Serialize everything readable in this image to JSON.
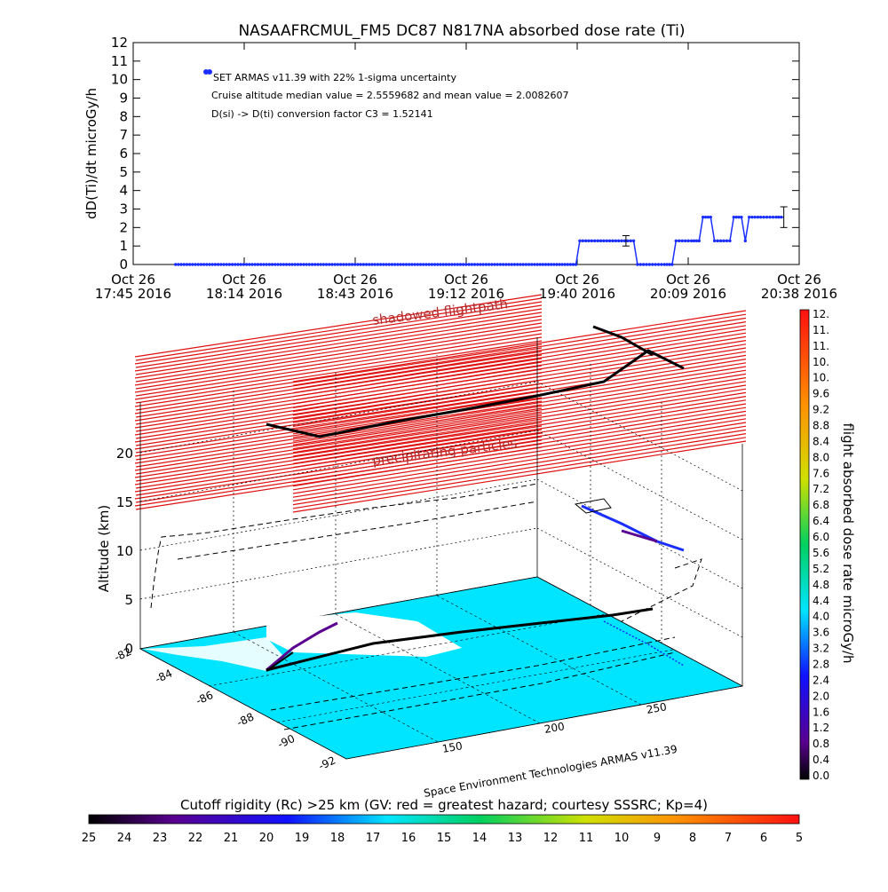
{
  "colors": {
    "axis": "#000000",
    "series": "#1a2fff",
    "net": "#e01010",
    "ocean": "#00e5ff",
    "track": "#000000"
  },
  "top_chart": {
    "title": "NASAAFRCMUL_FM5 DC87 N817NA absorbed dose rate (Ti)",
    "ylabel": "dD(Ti)/dt microGy/h",
    "legend_series": "SET ARMAS v11.39 with 22% 1-sigma uncertainty",
    "note1": "Cruise altitude median value = 2.5559682 and mean value = 2.0082607",
    "note2": "D(si) -> D(ti) conversion factor C3 = 1.52141",
    "x_ticks": [
      {
        "d": "Oct 26",
        "t": "17:45 2016"
      },
      {
        "d": "Oct 26",
        "t": "18:14 2016"
      },
      {
        "d": "Oct 26",
        "t": "18:43 2016"
      },
      {
        "d": "Oct 26",
        "t": "19:12 2016"
      },
      {
        "d": "Oct 26",
        "t": "19:40 2016"
      },
      {
        "d": "Oct 26",
        "t": "20:09 2016"
      },
      {
        "d": "Oct 26",
        "t": "20:38 2016"
      }
    ],
    "y_ticks": [
      "0",
      "1",
      "2",
      "3",
      "4",
      "5",
      "6",
      "7",
      "8",
      "9",
      "10",
      "11",
      "12"
    ]
  },
  "chart_data": [
    {
      "type": "line",
      "title": "NASAAFRCMUL_FM5 DC87 N817NA absorbed dose rate (Ti)",
      "xlabel": "",
      "ylabel": "dD(Ti)/dt microGy/h",
      "xlim": [
        "Oct 26 17:45 2016",
        "Oct 26 20:38 2016"
      ],
      "ylim": [
        0,
        12
      ],
      "series": [
        {
          "name": "SET ARMAS v11.39 with 22% 1-sigma uncertainty",
          "points": [
            [
              "17:56",
              0
            ],
            [
              "18:10",
              0
            ],
            [
              "18:30",
              0
            ],
            [
              "18:50",
              0
            ],
            [
              "19:10",
              0
            ],
            [
              "19:30",
              0
            ],
            [
              "19:40",
              0
            ],
            [
              "19:41",
              1.28
            ],
            [
              "19:48",
              1.28
            ],
            [
              "19:55",
              1.28
            ],
            [
              "19:56",
              0
            ],
            [
              "20:03",
              0
            ],
            [
              "20:05",
              0
            ],
            [
              "20:06",
              1.28
            ],
            [
              "20:10",
              1.28
            ],
            [
              "20:12",
              1.28
            ],
            [
              "20:13",
              2.56
            ],
            [
              "20:15",
              2.56
            ],
            [
              "20:16",
              1.28
            ],
            [
              "20:20",
              1.28
            ],
            [
              "20:21",
              2.56
            ],
            [
              "20:23",
              2.56
            ],
            [
              "20:24",
              1.28
            ],
            [
              "20:25",
              2.56
            ],
            [
              "20:28",
              2.56
            ],
            [
              "20:32",
              2.56
            ],
            [
              "20:34",
              2.56
            ]
          ],
          "error_bars": [
            {
              "x": "19:53",
              "y": 1.28,
              "err": 0.28
            },
            {
              "x": "20:34",
              "y": 2.56,
              "err": 0.56
            }
          ]
        }
      ]
    },
    {
      "type": "3d-trajectory",
      "zlabel": "Altitude (km)",
      "z_ticks": [
        "0",
        "5",
        "10",
        "15",
        "20"
      ],
      "lat_ticks": [
        "-82",
        "-84",
        "-86",
        "-88",
        "-90",
        "-92"
      ],
      "lon_ticks": [
        "150",
        "200",
        "250"
      ],
      "labels": {
        "shadowed": "shadowed flightpath",
        "precipitating": "precipitating particles",
        "credit": "Space Environment Technologies ARMAS v11.39"
      }
    }
  ],
  "right_colorbar": {
    "label": "flight absorbed dose rate microGy/h",
    "ticks": [
      "12.",
      "11.",
      "11.",
      "10.",
      "10.",
      "9.6",
      "9.2",
      "8.8",
      "8.4",
      "8.0",
      "7.6",
      "7.2",
      "6.8",
      "6.4",
      "6.0",
      "5.6",
      "5.2",
      "4.8",
      "4.4",
      "4.0",
      "3.6",
      "3.2",
      "2.8",
      "2.4",
      "2.0",
      "1.6",
      "1.2",
      "0.8",
      "0.4",
      "0.0"
    ]
  },
  "bottom_colorbar": {
    "label": "Cutoff rigidity (Rc) >25 km (GV: red = greatest hazard; courtesy SSSRC; Kp=4)",
    "ticks": [
      "25",
      "24",
      "23",
      "22",
      "21",
      "20",
      "19",
      "18",
      "17",
      "16",
      "15",
      "14",
      "13",
      "12",
      "11",
      "10",
      "9",
      "8",
      "7",
      "6",
      "5"
    ]
  }
}
